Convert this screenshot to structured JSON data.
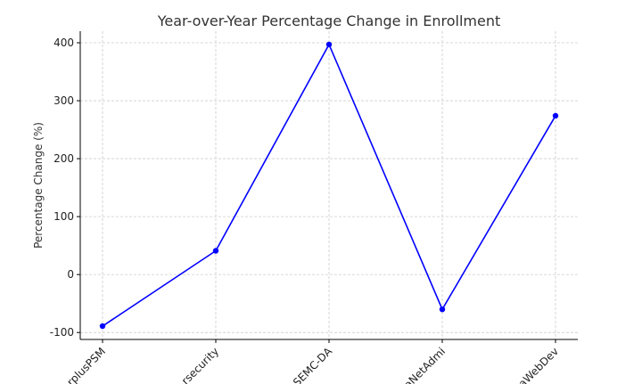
{
  "chart_data": {
    "type": "line",
    "title": "Year-over-Year Percentage Change in Enrollment",
    "xlabel": "",
    "ylabel": "Percentage Change (%)",
    "categories": [
      "rplusPSM",
      "rsecurity",
      "SEMC-DA",
      "aNetAdmi",
      "aWebDev"
    ],
    "series": [
      {
        "values": [
          -89,
          41,
          397,
          -60,
          274
        ]
      }
    ],
    "yticks": [
      -100,
      0,
      100,
      200,
      300,
      400
    ],
    "ylim": [
      -112,
      420
    ],
    "grid": true,
    "colors": {
      "line": "#0000ff",
      "marker": "#0000ff"
    }
  }
}
